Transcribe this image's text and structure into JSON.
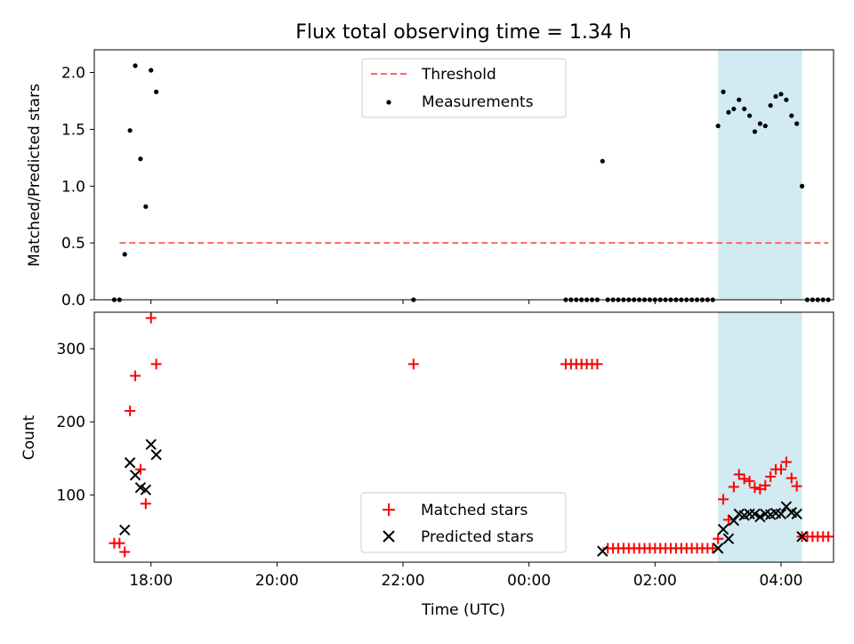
{
  "chart_data": [
    {
      "type": "scatter",
      "title": "Flux total observing time = 1.34 h",
      "ylabel": "Matched/Predicted stars",
      "xlabel": "",
      "xlim": [
        "17:30",
        "04:50"
      ],
      "ylim": [
        0,
        2.2
      ],
      "yticks": [
        "0.0",
        "0.5",
        "1.0",
        "1.5",
        "2.0"
      ],
      "highlight_span": {
        "start": "03:00",
        "end": "04:20",
        "color": "#add8e6"
      },
      "legend_position": "top-center",
      "threshold": {
        "name": "Threshold",
        "y": 0.5,
        "x_start": "17:30",
        "x_end": "04:45",
        "color": "#ff6666"
      },
      "series": [
        {
          "name": "Measurements",
          "color": "#000000",
          "points": [
            [
              "17:25",
              0
            ],
            [
              "17:30",
              0
            ],
            [
              "17:35",
              0.4
            ],
            [
              "17:40",
              1.49
            ],
            [
              "17:45",
              2.06
            ],
            [
              "17:50",
              1.24
            ],
            [
              "17:55",
              0.82
            ],
            [
              "18:00",
              2.02
            ],
            [
              "18:05",
              1.83
            ],
            [
              "22:10",
              0
            ],
            [
              "00:35",
              0
            ],
            [
              "00:40",
              0
            ],
            [
              "00:45",
              0
            ],
            [
              "00:50",
              0
            ],
            [
              "00:55",
              0
            ],
            [
              "01:00",
              0
            ],
            [
              "01:05",
              0
            ],
            [
              "01:10",
              1.22
            ],
            [
              "01:15",
              0
            ],
            [
              "01:20",
              0
            ],
            [
              "01:25",
              0
            ],
            [
              "01:30",
              0
            ],
            [
              "01:35",
              0
            ],
            [
              "01:40",
              0
            ],
            [
              "01:45",
              0
            ],
            [
              "01:50",
              0
            ],
            [
              "01:55",
              0
            ],
            [
              "02:00",
              0
            ],
            [
              "02:05",
              0
            ],
            [
              "02:10",
              0
            ],
            [
              "02:15",
              0
            ],
            [
              "02:20",
              0
            ],
            [
              "02:25",
              0
            ],
            [
              "02:30",
              0
            ],
            [
              "02:35",
              0
            ],
            [
              "02:40",
              0
            ],
            [
              "02:45",
              0
            ],
            [
              "02:50",
              0
            ],
            [
              "02:55",
              0
            ],
            [
              "03:00",
              1.53
            ],
            [
              "03:05",
              1.83
            ],
            [
              "03:10",
              1.65
            ],
            [
              "03:15",
              1.68
            ],
            [
              "03:20",
              1.76
            ],
            [
              "03:25",
              1.68
            ],
            [
              "03:30",
              1.62
            ],
            [
              "03:35",
              1.48
            ],
            [
              "03:40",
              1.55
            ],
            [
              "03:45",
              1.53
            ],
            [
              "03:50",
              1.71
            ],
            [
              "03:55",
              1.79
            ],
            [
              "04:00",
              1.81
            ],
            [
              "04:05",
              1.76
            ],
            [
              "04:10",
              1.62
            ],
            [
              "04:15",
              1.55
            ],
            [
              "04:20",
              1.0
            ],
            [
              "04:25",
              0
            ],
            [
              "04:30",
              0
            ],
            [
              "04:35",
              0
            ],
            [
              "04:40",
              0
            ],
            [
              "04:45",
              0
            ]
          ]
        }
      ]
    },
    {
      "type": "scatter",
      "title": "",
      "ylabel": "Count",
      "xlabel": "Time (UTC)",
      "xlim": [
        "17:30",
        "04:50"
      ],
      "ylim": [
        8,
        350
      ],
      "xticks": [
        "18:00",
        "20:00",
        "22:00",
        "00:00",
        "02:00",
        "04:00"
      ],
      "yticks": [
        "100",
        "200",
        "300"
      ],
      "highlight_span": {
        "start": "03:00",
        "end": "04:20",
        "color": "#add8e6"
      },
      "legend_position": "bottom-center",
      "series": [
        {
          "name": "Matched stars",
          "color": "#ff0000",
          "marker": "plus",
          "points": [
            [
              "17:25",
              34
            ],
            [
              "17:30",
              34
            ],
            [
              "17:35",
              22
            ],
            [
              "17:40",
              215
            ],
            [
              "17:45",
              263
            ],
            [
              "17:50",
              135
            ],
            [
              "17:55",
              88
            ],
            [
              "18:00",
              342
            ],
            [
              "18:05",
              279
            ],
            [
              "22:10",
              279
            ],
            [
              "00:35",
              279
            ],
            [
              "00:40",
              279
            ],
            [
              "00:45",
              279
            ],
            [
              "00:50",
              279
            ],
            [
              "00:55",
              279
            ],
            [
              "01:00",
              279
            ],
            [
              "01:05",
              279
            ],
            [
              "01:15",
              27
            ],
            [
              "01:20",
              27
            ],
            [
              "01:25",
              27
            ],
            [
              "01:30",
              27
            ],
            [
              "01:35",
              27
            ],
            [
              "01:40",
              27
            ],
            [
              "01:45",
              27
            ],
            [
              "01:50",
              27
            ],
            [
              "01:55",
              27
            ],
            [
              "02:00",
              27
            ],
            [
              "02:05",
              27
            ],
            [
              "02:10",
              27
            ],
            [
              "02:15",
              27
            ],
            [
              "02:20",
              27
            ],
            [
              "02:25",
              27
            ],
            [
              "02:30",
              27
            ],
            [
              "02:35",
              27
            ],
            [
              "02:40",
              27
            ],
            [
              "02:45",
              27
            ],
            [
              "02:50",
              27
            ],
            [
              "02:55",
              27
            ],
            [
              "03:00",
              40
            ],
            [
              "03:05",
              94
            ],
            [
              "03:10",
              66
            ],
            [
              "03:15",
              111
            ],
            [
              "03:20",
              128
            ],
            [
              "03:25",
              122
            ],
            [
              "03:30",
              119
            ],
            [
              "03:35",
              110
            ],
            [
              "03:40",
              108
            ],
            [
              "03:45",
              113
            ],
            [
              "03:50",
              125
            ],
            [
              "03:55",
              135
            ],
            [
              "04:00",
              135
            ],
            [
              "04:05",
              145
            ],
            [
              "04:10",
              123
            ],
            [
              "04:15",
              112
            ],
            [
              "04:20",
              43
            ],
            [
              "04:25",
              43
            ],
            [
              "04:30",
              43
            ],
            [
              "04:35",
              43
            ],
            [
              "04:40",
              43
            ],
            [
              "04:45",
              43
            ]
          ]
        },
        {
          "name": "Predicted stars",
          "color": "#000000",
          "marker": "x",
          "points": [
            [
              "17:35",
              52
            ],
            [
              "17:40",
              144
            ],
            [
              "17:45",
              127
            ],
            [
              "17:50",
              110
            ],
            [
              "17:55",
              107
            ],
            [
              "18:00",
              169
            ],
            [
              "18:05",
              155
            ],
            [
              "01:10",
              23
            ],
            [
              "03:00",
              27
            ],
            [
              "03:05",
              53
            ],
            [
              "03:10",
              40
            ],
            [
              "03:15",
              65
            ],
            [
              "03:20",
              74
            ],
            [
              "03:25",
              72
            ],
            [
              "03:30",
              74
            ],
            [
              "03:35",
              74
            ],
            [
              "03:40",
              70
            ],
            [
              "03:45",
              74
            ],
            [
              "03:50",
              73
            ],
            [
              "03:55",
              75
            ],
            [
              "04:00",
              74
            ],
            [
              "04:05",
              84
            ],
            [
              "04:10",
              76
            ],
            [
              "04:15",
              74
            ],
            [
              "04:20",
              43
            ]
          ]
        }
      ]
    }
  ]
}
